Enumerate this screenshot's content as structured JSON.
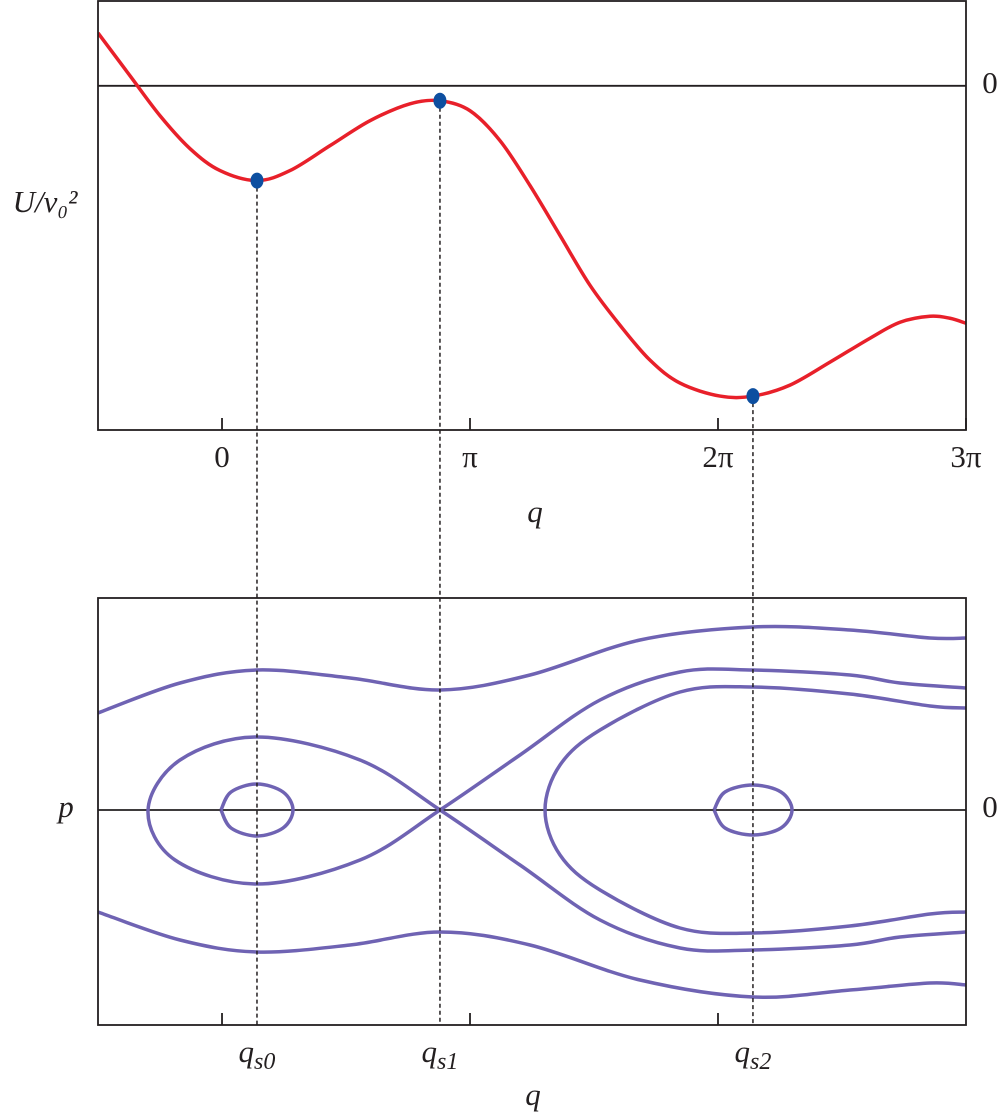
{
  "chart_data": [
    {
      "type": "line",
      "x_label": "q",
      "y_label": "U/v₀²",
      "xlim": [
        -1.571,
        9.425
      ],
      "ylim": [
        -3.45,
        0.85
      ],
      "xticks": [
        0,
        {
          "value": 3.14159,
          "label": "π"
        },
        {
          "value": 6.28319,
          "label": "2π"
        },
        {
          "value": 9.42478,
          "label": "3π"
        }
      ],
      "yticks": [
        0
      ],
      "series": [
        {
          "color": "#e8202a",
          "x": [
            -1.571,
            -1.165,
            -0.785,
            -0.405,
            -0.025,
            0.443,
            0.861,
            1.368,
            1.875,
            2.381,
            2.761,
            3.142,
            3.522,
            3.902,
            4.282,
            4.662,
            5.042,
            5.422,
            5.802,
            6.308,
            6.726,
            7.195,
            7.702,
            8.209,
            8.589,
            8.969,
            9.222,
            9.425
          ],
          "values": [
            0.53,
            0.1,
            -0.3,
            -0.63,
            -0.85,
            -0.95,
            -0.85,
            -0.6,
            -0.35,
            -0.18,
            -0.15,
            -0.25,
            -0.55,
            -1.0,
            -1.5,
            -2.0,
            -2.4,
            -2.75,
            -2.98,
            -3.11,
            -3.11,
            -3.0,
            -2.77,
            -2.53,
            -2.37,
            -2.31,
            -2.33,
            -2.38
          ]
        }
      ],
      "points": {
        "color": "#0d4fa0",
        "x": [
          0.443,
          2.761,
          6.726
        ],
        "values": [
          -0.95,
          -0.15,
          -3.11
        ]
      }
    },
    {
      "type": "phase",
      "x_label": "q",
      "y_label": "p",
      "xlim": [
        -1.571,
        9.425
      ],
      "ylim": [
        -2.15,
        2.12
      ],
      "xticks": [
        {
          "value": 0,
          "label": null
        },
        {
          "value": 3.14159,
          "label": null
        },
        {
          "value": 6.28319,
          "label": null
        }
      ],
      "qticks": [
        {
          "value": 0.443,
          "label": "qs0"
        },
        {
          "value": 2.761,
          "label": "qs1"
        },
        {
          "value": 6.726,
          "label": "qs2"
        }
      ],
      "yticks": [
        0
      ],
      "series": [
        {
          "color": "#6f63b3",
          "x": [
            -0.013,
            0.114,
            0.443,
            0.773,
            0.899,
            0.773,
            0.443,
            0.114,
            -0.013
          ],
          "values": [
            0,
            0.18,
            0.26,
            0.18,
            0,
            -0.18,
            -0.26,
            -0.18,
            0
          ]
        },
        {
          "color": "#6f63b3",
          "x": [
            6.233,
            6.372,
            6.727,
            7.081,
            7.221,
            7.081,
            6.727,
            6.372,
            6.233
          ],
          "values": [
            0,
            0.18,
            0.25,
            0.18,
            0,
            -0.18,
            -0.25,
            -0.18,
            0
          ]
        },
        {
          "color": "#6f63b3",
          "x": [
            9.425,
            8.589,
            7.955,
            6.727,
            5.802,
            4.789,
            3.775,
            2.762,
            1.748,
            0.443,
            -0.595,
            -0.937,
            -0.532,
            0.443,
            1.748,
            2.762,
            3.775,
            4.789,
            5.802,
            6.727,
            7.955,
            8.589,
            9.425
          ],
          "values": [
            1.22,
            1.27,
            1.35,
            1.4,
            1.38,
            1.1,
            0.55,
            0,
            -0.5,
            -0.74,
            -0.5,
            0,
            0.5,
            0.73,
            0.5,
            0,
            -0.55,
            -1.1,
            -1.38,
            -1.4,
            -1.35,
            -1.27,
            -1.22
          ]
        },
        {
          "color": "#6f63b3",
          "x": [
            9.425,
            8.969,
            7.955,
            6.727,
            5.802,
            4.789,
            4.282,
            4.092,
            4.282,
            4.789,
            5.802,
            6.727,
            7.955,
            8.969,
            9.425
          ],
          "values": [
            1.02,
            1.04,
            1.16,
            1.23,
            1.18,
            0.8,
            0.45,
            0,
            -0.45,
            -0.8,
            -1.18,
            -1.23,
            -1.16,
            -1.04,
            -1.02
          ]
        },
        {
          "color": "#6f63b3",
          "x": [
            -1.571,
            -0.532,
            0.443,
            1.622,
            2.762,
            3.902,
            5.295,
            6.727,
            7.955,
            8.969,
            9.425
          ],
          "values": [
            0.97,
            1.27,
            1.4,
            1.32,
            1.2,
            1.35,
            1.7,
            1.83,
            1.8,
            1.72,
            1.72
          ]
        },
        {
          "color": "#6f63b3",
          "x": [
            -1.571,
            -0.532,
            0.443,
            1.622,
            2.762,
            3.902,
            5.295,
            6.727,
            7.955,
            8.969,
            9.425
          ],
          "values": [
            -1.02,
            -1.3,
            -1.42,
            -1.35,
            -1.22,
            -1.35,
            -1.7,
            -1.87,
            -1.8,
            -1.73,
            -1.75
          ]
        }
      ]
    }
  ]
}
